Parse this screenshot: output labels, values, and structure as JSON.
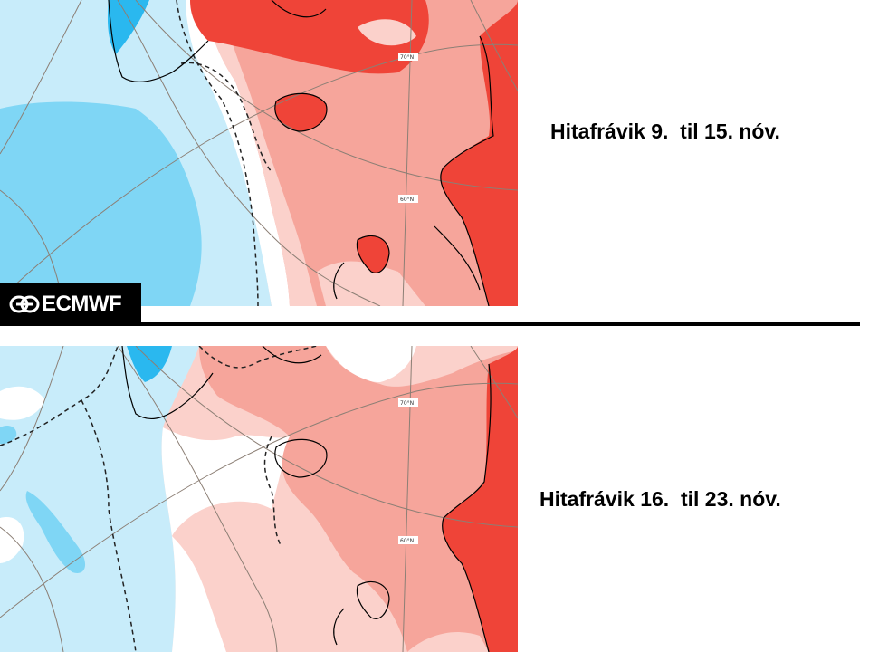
{
  "slides": {
    "top": {
      "caption": "Hitafrávik 9.  til 15. nóv.",
      "lat_labels": [
        "70°N",
        "60°N"
      ]
    },
    "bottom": {
      "caption": "Hitafrávik 16.  til 23. nóv.",
      "lat_labels": [
        "70°N",
        "60°N"
      ]
    }
  },
  "logo": {
    "text": "ECMWF"
  },
  "colors": {
    "cold_strong": "#2ab8ef",
    "cold_medium": "#7fd6f5",
    "cold_light": "#c8ecfa",
    "neutral": "#ffffff",
    "warm_light": "#fbd1cb",
    "warm_medium": "#f6a59b",
    "warm_strong": "#ef4438",
    "land_outline": "#000000",
    "grid": "#8c7f75",
    "divider": "#000000"
  }
}
